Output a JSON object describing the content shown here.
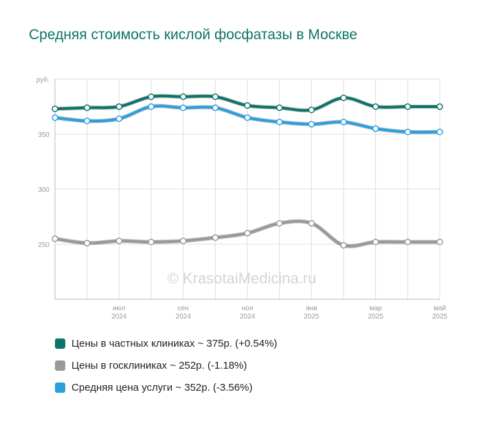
{
  "title": "Средняя стоимость кислой фосфатазы в Москве",
  "watermark": "© KrasotaiMedicina.ru",
  "chart_data": {
    "type": "line",
    "ylabel": "руб.",
    "ylim": [
      200,
      400
    ],
    "yticks": [
      250,
      300,
      350
    ],
    "grid": true,
    "x": [
      "2024-05",
      "2024-06",
      "2024-07",
      "2024-08",
      "2024-09",
      "2024-10",
      "2024-11",
      "2024-12",
      "2025-01",
      "2025-02",
      "2025-03",
      "2025-04",
      "2025-05"
    ],
    "xticks": [
      {
        "month": "июл",
        "year": "2024"
      },
      {
        "month": "сен",
        "year": "2024"
      },
      {
        "month": "ноя",
        "year": "2024"
      },
      {
        "month": "янв",
        "year": "2025"
      },
      {
        "month": "мар",
        "year": "2025"
      },
      {
        "month": "май",
        "year": "2025"
      }
    ],
    "xtick_index": [
      2,
      4,
      6,
      8,
      10,
      12
    ],
    "series": [
      {
        "name": "Цены в частных клиниках",
        "summary": "~ 375р. (+0.54%)",
        "color": "#0d7468",
        "values": [
          373,
          374,
          375,
          384,
          384,
          384,
          376,
          374,
          372,
          383,
          375,
          375,
          375
        ]
      },
      {
        "name": "Цены в госклиниках",
        "summary": "~ 252р. (-1.18%)",
        "color": "#999999",
        "values": [
          255,
          251,
          253,
          252,
          253,
          256,
          260,
          269,
          269,
          249,
          252,
          252,
          252
        ]
      },
      {
        "name": "Средняя цена услуги",
        "summary": "~ 352р. (-3.56%)",
        "color": "#2b9fe0",
        "values": [
          365,
          362,
          364,
          375,
          374,
          374,
          365,
          361,
          359,
          361,
          355,
          352,
          352
        ]
      }
    ]
  }
}
